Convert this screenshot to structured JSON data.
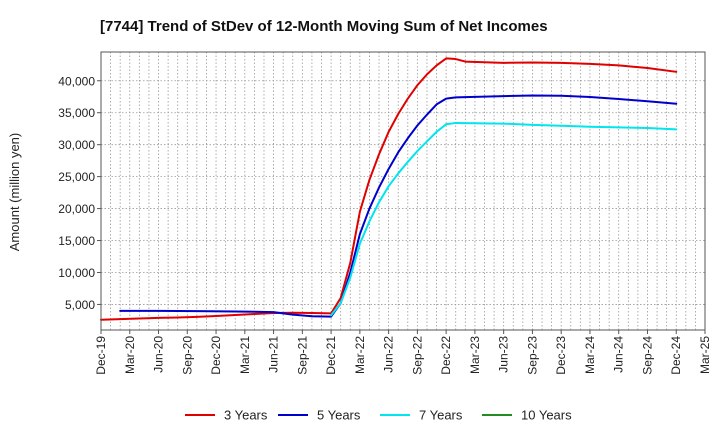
{
  "chart_data": {
    "type": "line",
    "title": "[7744]  Trend of StDev of 12-Month Moving Sum of Net Incomes",
    "xlabel": "",
    "ylabel": "Amount (million yen)",
    "ylim": [
      1000,
      44500
    ],
    "yticks": [
      5000,
      10000,
      15000,
      20000,
      25000,
      30000,
      35000,
      40000
    ],
    "ytick_labels": [
      "5,000",
      "10,000",
      "15,000",
      "20,000",
      "25,000",
      "30,000",
      "35,000",
      "40,000"
    ],
    "xtick_labels": [
      "Dec-19",
      "Mar-20",
      "Jun-20",
      "Sep-20",
      "Dec-20",
      "Mar-21",
      "Jun-21",
      "Sep-21",
      "Dec-21",
      "Mar-22",
      "Jun-22",
      "Sep-22",
      "Dec-22",
      "Mar-23",
      "Jun-23",
      "Sep-23",
      "Dec-23",
      "Mar-24",
      "Jun-24",
      "Sep-24",
      "Dec-24",
      "Mar-25"
    ],
    "x_unit": "month",
    "x_start": "Dec-19",
    "grid": true,
    "legend_position": "bottom",
    "series": [
      {
        "name": "3 Years",
        "color": "#e00000",
        "points": [
          [
            "Dec-19",
            2600
          ],
          [
            "Feb-20",
            2700
          ],
          [
            "Apr-20",
            2800
          ],
          [
            "Jun-20",
            2900
          ],
          [
            "Aug-20",
            2950
          ],
          [
            "Oct-20",
            3050
          ],
          [
            "Dec-20",
            3200
          ],
          [
            "Feb-21",
            3350
          ],
          [
            "Apr-21",
            3500
          ],
          [
            "Jun-21",
            3650
          ],
          [
            "Aug-21",
            3700
          ],
          [
            "Oct-21",
            3650
          ],
          [
            "Dec-21",
            3600
          ],
          [
            "Jan-22",
            6000
          ],
          [
            "Feb-22",
            11500
          ],
          [
            "Mar-22",
            19500
          ],
          [
            "Apr-22",
            24500
          ],
          [
            "May-22",
            28500
          ],
          [
            "Jun-22",
            32000
          ],
          [
            "Jul-22",
            34800
          ],
          [
            "Aug-22",
            37200
          ],
          [
            "Sep-22",
            39300
          ],
          [
            "Oct-22",
            41000
          ],
          [
            "Nov-22",
            42400
          ],
          [
            "Dec-22",
            43500
          ],
          [
            "Jan-23",
            43400
          ],
          [
            "Feb-23",
            43000
          ],
          [
            "Jun-23",
            42800
          ],
          [
            "Sep-23",
            42850
          ],
          [
            "Dec-23",
            42800
          ],
          [
            "Mar-24",
            42650
          ],
          [
            "Jun-24",
            42400
          ],
          [
            "Sep-24",
            42000
          ],
          [
            "Dec-24",
            41400
          ]
        ]
      },
      {
        "name": "5 Years",
        "color": "#0000cc",
        "points": [
          [
            "Feb-20",
            4000
          ],
          [
            "Jun-20",
            4000
          ],
          [
            "Oct-20",
            3950
          ],
          [
            "Feb-21",
            3900
          ],
          [
            "Jun-21",
            3800
          ],
          [
            "Aug-21",
            3400
          ],
          [
            "Oct-21",
            3150
          ],
          [
            "Dec-21",
            3100
          ],
          [
            "Jan-22",
            5200
          ],
          [
            "Feb-22",
            10000
          ],
          [
            "Mar-22",
            16000
          ],
          [
            "Apr-22",
            20000
          ],
          [
            "May-22",
            23300
          ],
          [
            "Jun-22",
            26200
          ],
          [
            "Jul-22",
            28800
          ],
          [
            "Aug-22",
            31000
          ],
          [
            "Sep-22",
            33000
          ],
          [
            "Oct-22",
            34700
          ],
          [
            "Nov-22",
            36300
          ],
          [
            "Dec-22",
            37200
          ],
          [
            "Jan-23",
            37400
          ],
          [
            "Jun-23",
            37600
          ],
          [
            "Sep-23",
            37700
          ],
          [
            "Dec-23",
            37650
          ],
          [
            "Mar-24",
            37450
          ],
          [
            "Jun-24",
            37150
          ],
          [
            "Sep-24",
            36800
          ],
          [
            "Dec-24",
            36400
          ]
        ]
      },
      {
        "name": "7 Years",
        "color": "#00e5ee",
        "points": [
          [
            "Dec-21",
            3300
          ],
          [
            "Jan-22",
            5200
          ],
          [
            "Feb-22",
            9200
          ],
          [
            "Mar-22",
            14500
          ],
          [
            "Apr-22",
            18000
          ],
          [
            "May-22",
            21000
          ],
          [
            "Jun-22",
            23500
          ],
          [
            "Jul-22",
            25500
          ],
          [
            "Aug-22",
            27300
          ],
          [
            "Sep-22",
            29000
          ],
          [
            "Oct-22",
            30500
          ],
          [
            "Nov-22",
            32000
          ],
          [
            "Dec-22",
            33200
          ],
          [
            "Jan-23",
            33400
          ],
          [
            "Jun-23",
            33300
          ],
          [
            "Sep-23",
            33100
          ],
          [
            "Dec-23",
            32950
          ],
          [
            "Mar-24",
            32800
          ],
          [
            "Jun-24",
            32700
          ],
          [
            "Sep-24",
            32600
          ],
          [
            "Dec-24",
            32400
          ]
        ]
      },
      {
        "name": "10 Years",
        "color": "#228b22",
        "points": []
      }
    ]
  }
}
